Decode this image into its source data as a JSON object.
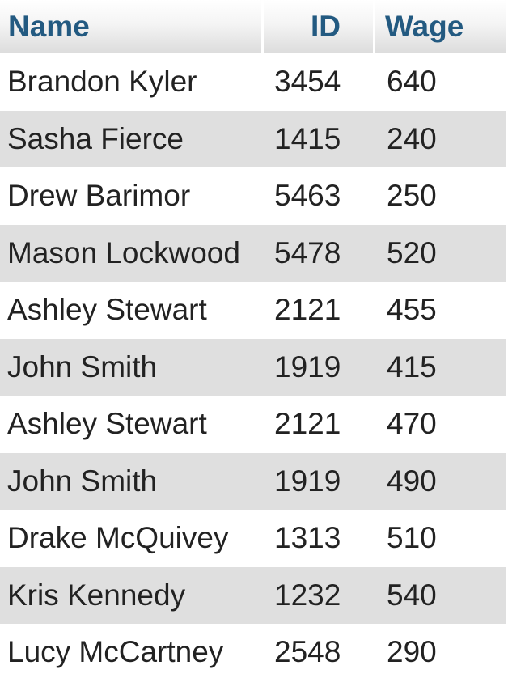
{
  "table": {
    "headers": {
      "name": "Name",
      "id": "ID",
      "wage": "Wage"
    },
    "rows": [
      {
        "name": "Brandon Kyler",
        "id": "3454",
        "wage": "640"
      },
      {
        "name": "Sasha Fierce",
        "id": "1415",
        "wage": "240"
      },
      {
        "name": "Drew Barimor",
        "id": "5463",
        "wage": "250"
      },
      {
        "name": "Mason Lockwood",
        "id": "5478",
        "wage": "520"
      },
      {
        "name": "Ashley Stewart",
        "id": "2121",
        "wage": "455"
      },
      {
        "name": "John Smith",
        "id": "1919",
        "wage": "415"
      },
      {
        "name": "Ashley Stewart",
        "id": "2121",
        "wage": "470"
      },
      {
        "name": "John Smith",
        "id": "1919",
        "wage": "490"
      },
      {
        "name": "Drake McQuivey",
        "id": "1313",
        "wage": "510"
      },
      {
        "name": "Kris Kennedy",
        "id": "1232",
        "wage": "540"
      },
      {
        "name": "Lucy McCartney",
        "id": "2548",
        "wage": "290"
      }
    ]
  },
  "colors": {
    "header_text": "#235a81",
    "row_alt_bg": "#dfdfdf",
    "row_bg": "#ffffff",
    "cell_text": "#222222"
  }
}
